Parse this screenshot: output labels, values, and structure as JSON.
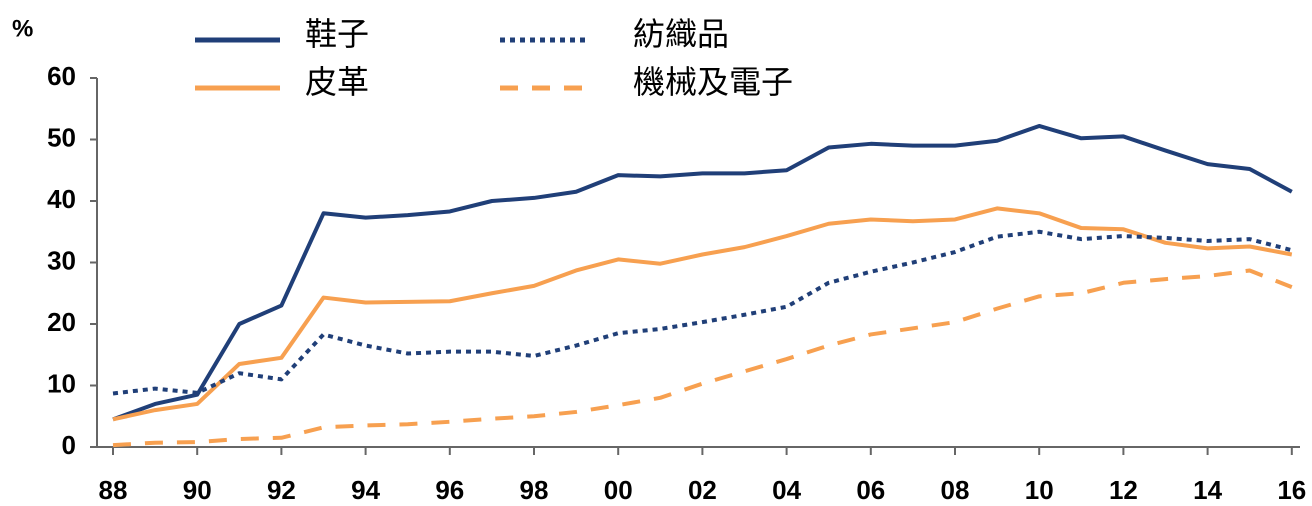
{
  "chart_data": {
    "type": "line",
    "y_unit": "%",
    "categories": [
      "88",
      null,
      "90",
      null,
      "92",
      null,
      "94",
      null,
      "96",
      null,
      "98",
      null,
      "00",
      null,
      "02",
      null,
      "04",
      null,
      "06",
      null,
      "08",
      null,
      "10",
      null,
      "12",
      null,
      "14",
      null,
      "16"
    ],
    "series": [
      {
        "name": "鞋子",
        "color": "#203f78",
        "dash": "solid",
        "values": [
          4.5,
          7,
          8.5,
          20,
          23,
          38,
          37.3,
          37.7,
          38.3,
          40,
          40.5,
          41.5,
          44.2,
          44,
          44.5,
          44.5,
          45,
          48.7,
          49.3,
          49,
          49,
          49.8,
          52.2,
          50.2,
          50.5,
          48.2,
          46,
          45.2,
          41.5
        ]
      },
      {
        "name": "皮革",
        "color": "#f7a050",
        "dash": "solid",
        "values": [
          4.5,
          6,
          7,
          13.5,
          14.5,
          24.3,
          23.5,
          23.6,
          23.7,
          25,
          26.2,
          28.7,
          30.5,
          29.8,
          31.3,
          32.5,
          34.3,
          36.3,
          37,
          36.7,
          37,
          38.8,
          38,
          35.6,
          35.4,
          33.2,
          32.3,
          32.6,
          31.3
        ]
      },
      {
        "name": "紡織品",
        "color": "#203f78",
        "dash": "dotted",
        "values": [
          8.7,
          9.5,
          8.8,
          12,
          11,
          18.3,
          16.5,
          15.2,
          15.5,
          15.5,
          14.8,
          16.5,
          18.5,
          19.2,
          20.3,
          21.5,
          22.8,
          26.7,
          28.5,
          30,
          31.7,
          34.2,
          35,
          33.8,
          34.3,
          34,
          33.5,
          33.8,
          32
        ]
      },
      {
        "name": "機械及電子",
        "color": "#f7a050",
        "dash": "dashed",
        "values": [
          0.3,
          0.7,
          0.8,
          1.3,
          1.5,
          3.2,
          3.5,
          3.7,
          4.1,
          4.6,
          5,
          5.7,
          6.8,
          8,
          10.3,
          12.3,
          14.3,
          16.5,
          18.3,
          19.3,
          20.3,
          22.5,
          24.5,
          25,
          26.7,
          27.3,
          27.8,
          28.7,
          26
        ]
      }
    ],
    "ylim": [
      0,
      60
    ],
    "yticks": [
      0,
      10,
      20,
      30,
      40,
      50,
      60
    ],
    "grid": false
  }
}
